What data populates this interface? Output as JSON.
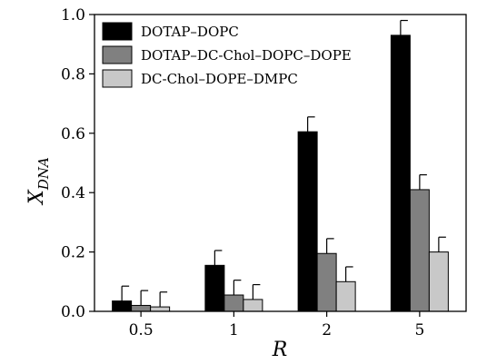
{
  "chart_data": {
    "type": "bar",
    "xlabel": "R",
    "ylabel": "X",
    "ylabel_sub": "DNA",
    "categories": [
      "0.5",
      "1",
      "2",
      "5"
    ],
    "ylim": [
      0,
      1.0
    ],
    "yticks": [
      "0.0",
      "0.2",
      "0.4",
      "0.6",
      "0.8",
      "1.0"
    ],
    "grid": false,
    "legend_position": "top-left",
    "series": [
      {
        "name": "DOTAP–DOPC",
        "color": "#000000",
        "values": [
          0.035,
          0.155,
          0.605,
          0.93
        ],
        "errors": [
          0.05,
          0.05,
          0.05,
          0.05
        ]
      },
      {
        "name": "DOTAP–DC-Chol–DOPC–DOPE",
        "color": "#808080",
        "values": [
          0.02,
          0.055,
          0.195,
          0.41
        ],
        "errors": [
          0.05,
          0.05,
          0.05,
          0.05
        ]
      },
      {
        "name": "DC-Chol–DOPE–DMPC",
        "color": "#c8c8c8",
        "values": [
          0.015,
          0.04,
          0.1,
          0.2
        ],
        "errors": [
          0.05,
          0.05,
          0.05,
          0.05
        ]
      }
    ]
  }
}
